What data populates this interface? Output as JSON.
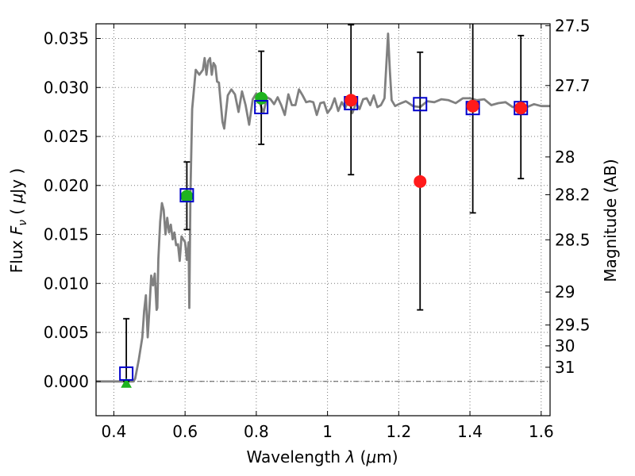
{
  "chart_data": {
    "type": "scatter",
    "xlabel_parts": [
      "Wavelength  ",
      "λ",
      " (",
      "μ",
      "m)"
    ],
    "ylabel_parts": [
      "Flux  ",
      "F",
      "ν",
      "  ( ",
      "μ",
      "Jy )"
    ],
    "y2label": "Magnitude (AB)",
    "xlim": [
      0.35,
      1.625
    ],
    "ylim": [
      -0.0035,
      0.0365
    ],
    "xticks": [
      {
        "value": 0.4,
        "label": "0.4"
      },
      {
        "value": 0.6,
        "label": "0.6"
      },
      {
        "value": 0.8,
        "label": "0.8"
      },
      {
        "value": 1.0,
        "label": "1"
      },
      {
        "value": 1.2,
        "label": "1.2"
      },
      {
        "value": 1.4,
        "label": "1.4"
      },
      {
        "value": 1.6,
        "label": "1.6"
      }
    ],
    "yticks": [
      {
        "value": 0.0,
        "label": "0.000"
      },
      {
        "value": 0.005,
        "label": "0.005"
      },
      {
        "value": 0.01,
        "label": "0.010"
      },
      {
        "value": 0.015,
        "label": "0.015"
      },
      {
        "value": 0.02,
        "label": "0.020"
      },
      {
        "value": 0.025,
        "label": "0.025"
      },
      {
        "value": 0.03,
        "label": "0.030"
      },
      {
        "value": 0.035,
        "label": "0.035"
      }
    ],
    "y2ticks": [
      {
        "value": 27.5,
        "label": "27.5"
      },
      {
        "value": 27.7,
        "label": "27.7"
      },
      {
        "value": 28.0,
        "label": "28"
      },
      {
        "value": 28.2,
        "label": "28.2"
      },
      {
        "value": 28.5,
        "label": "28.5"
      },
      {
        "value": 29.0,
        "label": "29"
      },
      {
        "value": 29.5,
        "label": "29.5"
      },
      {
        "value": 30.0,
        "label": "30"
      },
      {
        "value": 31.0,
        "label": "31"
      }
    ],
    "grid": true,
    "zero_line": true,
    "colors": {
      "sed": "#808080",
      "model": "#0000cc",
      "detection": "#ff1a1a",
      "optical": "#1fb31f",
      "errorbar": "#000000",
      "grid": "#7a7a7a"
    },
    "sed_spectrum": {
      "x": [
        0.35,
        0.44,
        0.455,
        0.46,
        0.47,
        0.48,
        0.485,
        0.49,
        0.495,
        0.5,
        0.505,
        0.51,
        0.515,
        0.52,
        0.522,
        0.525,
        0.53,
        0.535,
        0.54,
        0.545,
        0.55,
        0.555,
        0.56,
        0.565,
        0.57,
        0.575,
        0.58,
        0.585,
        0.59,
        0.595,
        0.6,
        0.605,
        0.61,
        0.612,
        0.615,
        0.62,
        0.63,
        0.64,
        0.65,
        0.655,
        0.66,
        0.665,
        0.67,
        0.675,
        0.68,
        0.685,
        0.69,
        0.695,
        0.7,
        0.705,
        0.71,
        0.72,
        0.73,
        0.74,
        0.75,
        0.76,
        0.77,
        0.78,
        0.79,
        0.8,
        0.81,
        0.82,
        0.83,
        0.84,
        0.85,
        0.86,
        0.87,
        0.88,
        0.89,
        0.9,
        0.91,
        0.92,
        0.93,
        0.94,
        0.95,
        0.96,
        0.97,
        0.98,
        0.99,
        1.0,
        1.01,
        1.02,
        1.03,
        1.04,
        1.05,
        1.06,
        1.07,
        1.08,
        1.09,
        1.1,
        1.11,
        1.12,
        1.13,
        1.14,
        1.15,
        1.16,
        1.17,
        1.175,
        1.18,
        1.19,
        1.2,
        1.22,
        1.24,
        1.26,
        1.28,
        1.3,
        1.32,
        1.34,
        1.36,
        1.38,
        1.4,
        1.42,
        1.44,
        1.46,
        1.48,
        1.5,
        1.52,
        1.54,
        1.56,
        1.58,
        1.6,
        1.625
      ],
      "y": [
        0.0,
        0.0,
        0.0,
        0.0003,
        0.0022,
        0.0045,
        0.0072,
        0.0088,
        0.0045,
        0.0075,
        0.0108,
        0.0098,
        0.011,
        0.0073,
        0.0075,
        0.0125,
        0.0163,
        0.0182,
        0.0175,
        0.015,
        0.0167,
        0.0152,
        0.016,
        0.0145,
        0.0152,
        0.0139,
        0.014,
        0.0123,
        0.0148,
        0.0145,
        0.0142,
        0.0124,
        0.0142,
        0.0075,
        0.019,
        0.0278,
        0.0318,
        0.0313,
        0.0318,
        0.033,
        0.0313,
        0.0327,
        0.033,
        0.0313,
        0.0325,
        0.0322,
        0.0306,
        0.0305,
        0.0285,
        0.0265,
        0.0258,
        0.0292,
        0.0298,
        0.0293,
        0.0275,
        0.0296,
        0.0282,
        0.0262,
        0.0288,
        0.0294,
        0.0284,
        0.0274,
        0.029,
        0.0288,
        0.0283,
        0.029,
        0.0282,
        0.0272,
        0.0293,
        0.0282,
        0.0282,
        0.0298,
        0.0292,
        0.0285,
        0.0286,
        0.0285,
        0.0272,
        0.0284,
        0.0285,
        0.0274,
        0.0279,
        0.0289,
        0.0276,
        0.0285,
        0.0279,
        0.0288,
        0.0274,
        0.0284,
        0.0278,
        0.0288,
        0.0289,
        0.0282,
        0.0292,
        0.028,
        0.0282,
        0.0289,
        0.0355,
        0.0318,
        0.0287,
        0.0281,
        0.0283,
        0.0286,
        0.0281,
        0.028,
        0.0286,
        0.0285,
        0.0288,
        0.0287,
        0.0284,
        0.0289,
        0.0289,
        0.0287,
        0.0288,
        0.0282,
        0.0284,
        0.0285,
        0.028,
        0.0282,
        0.028,
        0.0283,
        0.0281,
        0.0281
      ]
    },
    "model_photometry": {
      "marker": "open-square",
      "points": [
        {
          "x": 0.435,
          "y": 0.0008
        },
        {
          "x": 0.605,
          "y": 0.019
        },
        {
          "x": 0.814,
          "y": 0.028
        },
        {
          "x": 1.066,
          "y": 0.0284
        },
        {
          "x": 1.26,
          "y": 0.0283
        },
        {
          "x": 1.408,
          "y": 0.0279
        },
        {
          "x": 1.543,
          "y": 0.0279
        }
      ]
    },
    "detections": {
      "marker": "filled-circle",
      "points": [
        {
          "x": 1.066,
          "y": 0.0287,
          "err_low": 0.0211,
          "err_high": 0.0364
        },
        {
          "x": 1.26,
          "y": 0.0204,
          "err_low": 0.0073,
          "err_high": 0.0336
        },
        {
          "x": 1.408,
          "y": 0.0281,
          "err_low": 0.0172,
          "err_high": 0.039
        },
        {
          "x": 1.543,
          "y": 0.0279,
          "err_low": 0.0207,
          "err_high": 0.0353
        }
      ]
    },
    "optical_points": {
      "marker": "filled-circle",
      "points": [
        {
          "x": 0.605,
          "y": 0.0189,
          "err_low": 0.0155,
          "err_high": 0.0224
        },
        {
          "x": 0.814,
          "y": 0.0289,
          "err_low": 0.0242,
          "err_high": 0.0337
        }
      ]
    },
    "optical_upper_limit": {
      "marker": "filled-triangle",
      "x": 0.435,
      "y": -0.0002,
      "err_low": 0.0,
      "err_high": 0.0064
    }
  }
}
